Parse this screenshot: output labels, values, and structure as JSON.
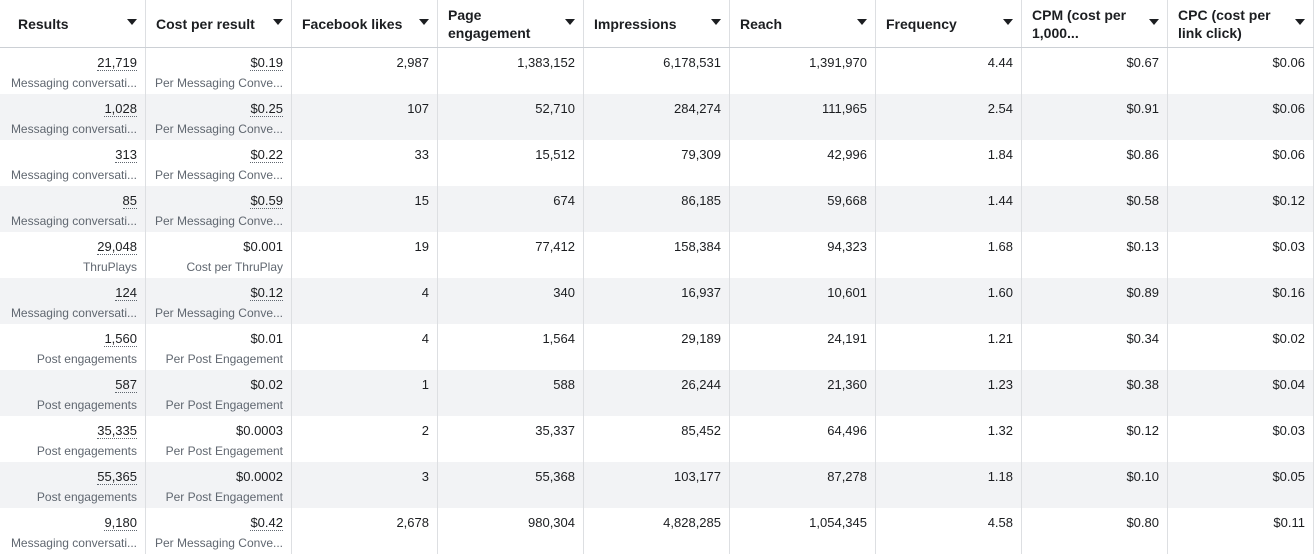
{
  "columns": [
    {
      "label": "Results"
    },
    {
      "label": "Cost per result"
    },
    {
      "label": "Facebook likes"
    },
    {
      "label": "Page engagement"
    },
    {
      "label": "Impressions"
    },
    {
      "label": "Reach"
    },
    {
      "label": "Frequency"
    },
    {
      "label": "CPM (cost per 1,000..."
    },
    {
      "label": "CPC (cost per link click)"
    }
  ],
  "rows": [
    {
      "results": "21,719",
      "results_sub": "Messaging conversati...",
      "cpr": "$0.19",
      "cpr_sub": "Per Messaging Conve...",
      "likes": "2,987",
      "engagement": "1,383,152",
      "impressions": "6,178,531",
      "reach": "1,391,970",
      "frequency": "4.44",
      "cpm": "$0.67",
      "cpc": "$0.06"
    },
    {
      "results": "1,028",
      "results_sub": "Messaging conversati...",
      "cpr": "$0.25",
      "cpr_sub": "Per Messaging Conve...",
      "likes": "107",
      "engagement": "52,710",
      "impressions": "284,274",
      "reach": "111,965",
      "frequency": "2.54",
      "cpm": "$0.91",
      "cpc": "$0.06"
    },
    {
      "results": "313",
      "results_sub": "Messaging conversati...",
      "cpr": "$0.22",
      "cpr_sub": "Per Messaging Conve...",
      "likes": "33",
      "engagement": "15,512",
      "impressions": "79,309",
      "reach": "42,996",
      "frequency": "1.84",
      "cpm": "$0.86",
      "cpc": "$0.06"
    },
    {
      "results": "85",
      "results_sub": "Messaging conversati...",
      "cpr": "$0.59",
      "cpr_sub": "Per Messaging Conve...",
      "likes": "15",
      "engagement": "674",
      "impressions": "86,185",
      "reach": "59,668",
      "frequency": "1.44",
      "cpm": "$0.58",
      "cpc": "$0.12"
    },
    {
      "results": "29,048",
      "results_sub": "ThruPlays",
      "cpr": "$0.001",
      "cpr_sub": "Cost per ThruPlay",
      "likes": "19",
      "engagement": "77,412",
      "impressions": "158,384",
      "reach": "94,323",
      "frequency": "1.68",
      "cpm": "$0.13",
      "cpc": "$0.03"
    },
    {
      "results": "124",
      "results_sub": "Messaging conversati...",
      "cpr": "$0.12",
      "cpr_sub": "Per Messaging Conve...",
      "likes": "4",
      "engagement": "340",
      "impressions": "16,937",
      "reach": "10,601",
      "frequency": "1.60",
      "cpm": "$0.89",
      "cpc": "$0.16"
    },
    {
      "results": "1,560",
      "results_sub": "Post engagements",
      "cpr": "$0.01",
      "cpr_sub": "Per Post Engagement",
      "likes": "4",
      "engagement": "1,564",
      "impressions": "29,189",
      "reach": "24,191",
      "frequency": "1.21",
      "cpm": "$0.34",
      "cpc": "$0.02"
    },
    {
      "results": "587",
      "results_sub": "Post engagements",
      "cpr": "$0.02",
      "cpr_sub": "Per Post Engagement",
      "likes": "1",
      "engagement": "588",
      "impressions": "26,244",
      "reach": "21,360",
      "frequency": "1.23",
      "cpm": "$0.38",
      "cpc": "$0.04"
    },
    {
      "results": "35,335",
      "results_sub": "Post engagements",
      "cpr": "$0.0003",
      "cpr_sub": "Per Post Engagement",
      "likes": "2",
      "engagement": "35,337",
      "impressions": "85,452",
      "reach": "64,496",
      "frequency": "1.32",
      "cpm": "$0.12",
      "cpc": "$0.03"
    },
    {
      "results": "55,365",
      "results_sub": "Post engagements",
      "cpr": "$0.0002",
      "cpr_sub": "Per Post Engagement",
      "likes": "3",
      "engagement": "55,368",
      "impressions": "103,177",
      "reach": "87,278",
      "frequency": "1.18",
      "cpm": "$0.10",
      "cpc": "$0.05"
    },
    {
      "results": "9,180",
      "results_sub": "Messaging conversati...",
      "cpr": "$0.42",
      "cpr_sub": "Per Messaging Conve...",
      "likes": "2,678",
      "engagement": "980,304",
      "impressions": "4,828,285",
      "reach": "1,054,345",
      "frequency": "4.58",
      "cpm": "$0.80",
      "cpc": "$0.11"
    }
  ]
}
